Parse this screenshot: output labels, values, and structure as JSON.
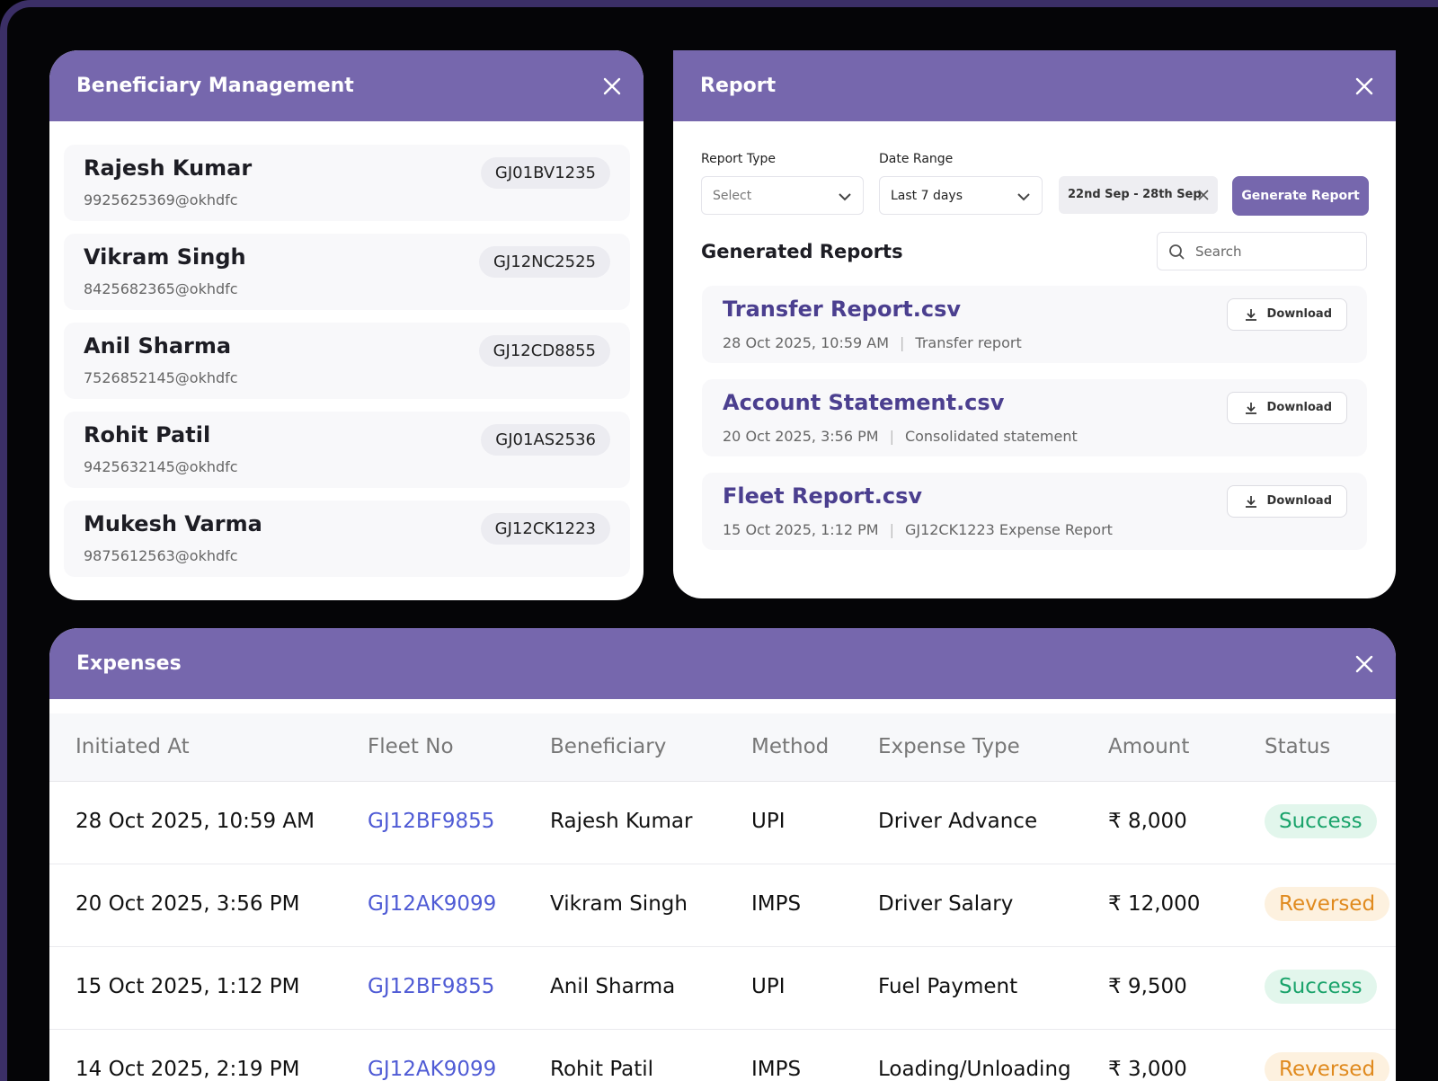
{
  "beneficiary": {
    "title": "Beneficiary Management",
    "items": [
      {
        "name": "Rajesh Kumar",
        "upi": "9925625369@okhdfc",
        "fleet": "GJ01BV1235"
      },
      {
        "name": "Vikram Singh",
        "upi": "8425682365@okhdfc",
        "fleet": "GJ12NC2525"
      },
      {
        "name": "Anil Sharma",
        "upi": "7526852145@okhdfc",
        "fleet": "GJ12CD8855"
      },
      {
        "name": "Rohit Patil",
        "upi": "9425632145@okhdfc",
        "fleet": "GJ01AS2536"
      },
      {
        "name": "Mukesh Varma",
        "upi": "9875612563@okhdfc",
        "fleet": "GJ12CK1223"
      }
    ]
  },
  "report": {
    "title": "Report",
    "report_type_label": "Report Type",
    "report_type_value": "Select",
    "date_range_label": "Date Range",
    "date_range_value": "Last 7 days",
    "date_chip": "22nd Sep - 28th Sep",
    "generate_button": "Generate Report",
    "generated_title": "Generated Reports",
    "search_placeholder": "Search",
    "reports": [
      {
        "name": "Transfer Report.csv",
        "date": "28 Oct 2025, 10:59 AM",
        "desc": "Transfer report",
        "action": "Download"
      },
      {
        "name": "Account Statement.csv",
        "date": "20 Oct 2025, 3:56 PM",
        "desc": "Consolidated statement",
        "action": "Download"
      },
      {
        "name": "Fleet Report.csv",
        "date": "15 Oct 2025, 1:12 PM",
        "desc": "GJ12CK1223 Expense Report",
        "action": "Download"
      }
    ]
  },
  "expenses": {
    "title": "Expenses",
    "columns": [
      "Initiated At",
      "Fleet No",
      "Beneficiary",
      "Method",
      "Expense Type",
      "Amount",
      "Status"
    ],
    "rows": [
      {
        "cells": [
          "28 Oct 2025, 10:59 AM",
          "GJ12BF9855",
          "Rajesh Kumar",
          "UPI",
          "Driver Advance",
          "₹ 8,000",
          "Success"
        ],
        "status_color": "#1aa36b",
        "status_bg": "#e2f6ec"
      },
      {
        "cells": [
          "20 Oct 2025, 3:56 PM",
          "GJ12AK9099",
          "Vikram Singh",
          "IMPS",
          "Driver Salary",
          "₹ 12,000",
          "Reversed"
        ],
        "status_color": "#e08a1e",
        "status_bg": "#fdf1df"
      },
      {
        "cells": [
          "15 Oct 2025, 1:12 PM",
          "GJ12BF9855",
          "Anil Sharma",
          "UPI",
          "Fuel Payment",
          "₹ 9,500",
          "Success"
        ],
        "status_color": "#1aa36b",
        "status_bg": "#e2f6ec"
      },
      {
        "cells": [
          "14 Oct 2025, 2:19 PM",
          "GJ12AK9099",
          "Rohit Patil",
          "IMPS",
          "Loading/Unloading",
          "₹ 3,000",
          "Reversed"
        ],
        "status_color": "#e08a1e",
        "status_bg": "#fdf1df"
      }
    ]
  }
}
